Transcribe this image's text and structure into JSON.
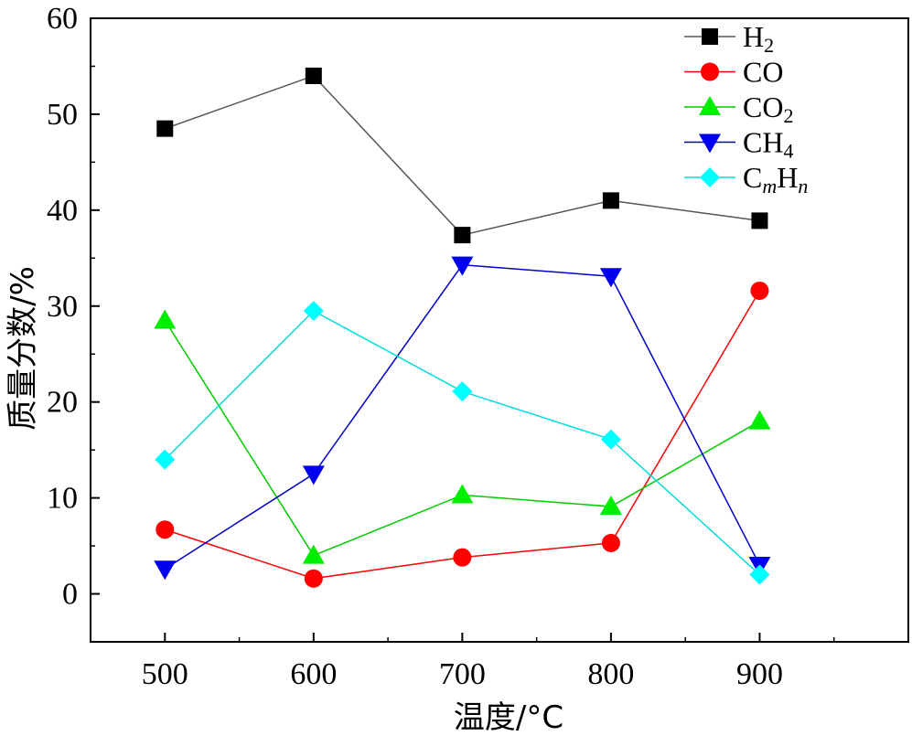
{
  "chart_data": {
    "type": "line",
    "title": "",
    "xlabel": "温度/°C",
    "ylabel": "质量分数/%",
    "x": [
      500,
      600,
      700,
      800,
      900
    ],
    "xlim": [
      450,
      1000
    ],
    "ylim": [
      -5,
      60
    ],
    "x_ticks": [
      500,
      600,
      700,
      800,
      900
    ],
    "x_tick_labels": [
      "500",
      "600",
      "700",
      "800",
      "900"
    ],
    "y_ticks": [
      0,
      10,
      20,
      30,
      40,
      50,
      60
    ],
    "y_tick_labels": [
      "0",
      "10",
      "20",
      "30",
      "40",
      "50",
      "60"
    ],
    "grid": false,
    "legend_position": "top-right",
    "series": [
      {
        "name": "H2",
        "legend": {
          "base": "H",
          "sub": "2"
        },
        "color": "#000000",
        "line_color": "#555555",
        "marker": "square",
        "values": [
          48.5,
          54.0,
          37.4,
          41.0,
          38.9
        ]
      },
      {
        "name": "CO",
        "legend": {
          "base": "CO",
          "sub": ""
        },
        "color": "#ff0000",
        "line_color": "#ff0000",
        "marker": "circle",
        "values": [
          6.7,
          1.6,
          3.8,
          5.3,
          31.6
        ]
      },
      {
        "name": "CO2",
        "legend": {
          "base": "CO",
          "sub": "2"
        },
        "color": "#00ee00",
        "line_color": "#00cc00",
        "marker": "triangle-up",
        "values": [
          28.5,
          4.0,
          10.3,
          9.1,
          18.0
        ]
      },
      {
        "name": "CH4",
        "legend": {
          "base": "CH",
          "sub": "4"
        },
        "color": "#0000ee",
        "line_color": "#0000cc",
        "marker": "triangle-down",
        "values": [
          2.6,
          12.5,
          34.3,
          33.1,
          3.0
        ]
      },
      {
        "name": "CmHn",
        "legend": {
          "base": "C",
          "sub": "m",
          "base2": "H",
          "sub2": "n"
        },
        "color": "#00ffff",
        "line_color": "#00dddd",
        "marker": "diamond",
        "values": [
          14.0,
          29.5,
          21.1,
          16.1,
          2.0
        ]
      }
    ]
  }
}
